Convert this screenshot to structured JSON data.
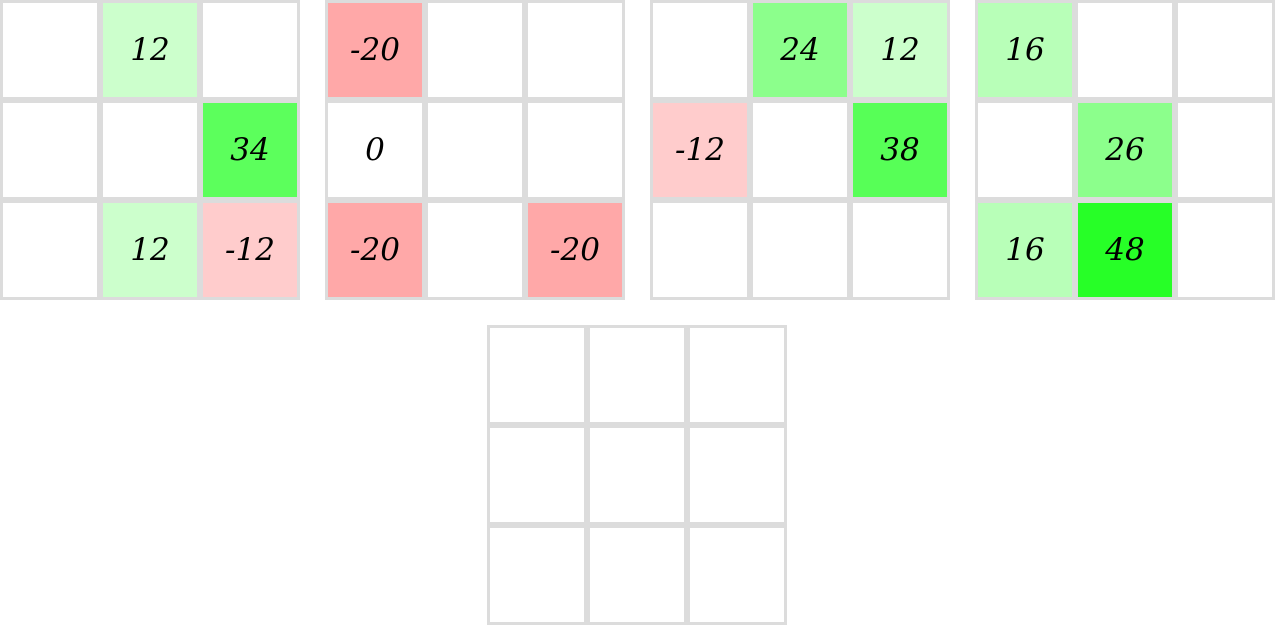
{
  "grids": [
    {
      "cells": [
        [
          "",
          "12",
          ""
        ],
        [
          "",
          "",
          "34"
        ],
        [
          "",
          "12",
          "-12"
        ]
      ],
      "colors": [
        [
          "#ffffff",
          "#ccffcc",
          "#ffffff"
        ],
        [
          "#ffffff",
          "#ffffff",
          "#5cff5c"
        ],
        [
          "#ffffff",
          "#ccffcc",
          "#ffcccc"
        ]
      ]
    },
    {
      "cells": [
        [
          "-20",
          "",
          ""
        ],
        [
          "0",
          "",
          ""
        ],
        [
          "-20",
          "",
          "-20"
        ]
      ],
      "colors": [
        [
          "#ffa8a8",
          "#ffffff",
          "#ffffff"
        ],
        [
          "#ffffff",
          "#ffffff",
          "#ffffff"
        ],
        [
          "#ffa8a8",
          "#ffffff",
          "#ffa8a8"
        ]
      ]
    },
    {
      "cells": [
        [
          "",
          "24",
          "12"
        ],
        [
          "-12",
          "",
          "38"
        ],
        [
          "",
          "",
          ""
        ]
      ],
      "colors": [
        [
          "#ffffff",
          "#8cff8c",
          "#ccffcc"
        ],
        [
          "#ffcccc",
          "#ffffff",
          "#57ff57"
        ],
        [
          "#ffffff",
          "#ffffff",
          "#ffffff"
        ]
      ]
    },
    {
      "cells": [
        [
          "16",
          "",
          ""
        ],
        [
          "",
          "26",
          ""
        ],
        [
          "16",
          "48",
          ""
        ]
      ],
      "colors": [
        [
          "#b8ffb8",
          "#ffffff",
          "#ffffff"
        ],
        [
          "#ffffff",
          "#8cff8c",
          "#ffffff"
        ],
        [
          "#b8ffb8",
          "#27ff27",
          "#ffffff"
        ]
      ]
    },
    {
      "cells": [
        [
          "",
          "",
          ""
        ],
        [
          "",
          "",
          ""
        ],
        [
          "",
          "",
          ""
        ]
      ],
      "colors": [
        [
          "#ffffff",
          "#ffffff",
          "#ffffff"
        ],
        [
          "#ffffff",
          "#ffffff",
          "#ffffff"
        ],
        [
          "#ffffff",
          "#ffffff",
          "#ffffff"
        ]
      ]
    }
  ]
}
